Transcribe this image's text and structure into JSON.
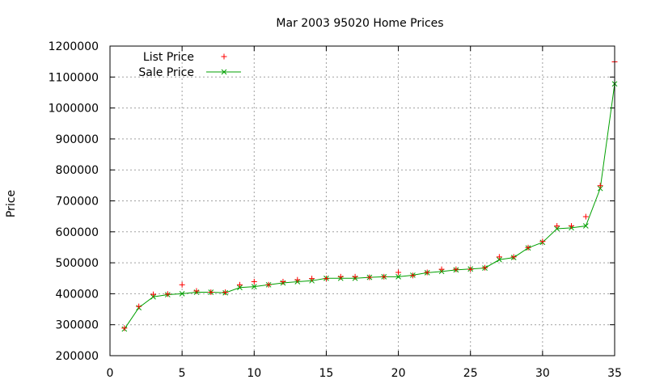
{
  "chart_data": {
    "type": "line",
    "title": "Mar 2003 95020 Home Prices",
    "xlabel": "",
    "ylabel": "Price",
    "xlim": [
      0,
      35
    ],
    "ylim": [
      200000,
      1200000
    ],
    "xticks": [
      0,
      5,
      10,
      15,
      20,
      25,
      30,
      35
    ],
    "yticks": [
      200000,
      300000,
      400000,
      500000,
      600000,
      700000,
      800000,
      900000,
      1000000,
      1100000,
      1200000
    ],
    "grid": true,
    "legend_position": "top-left",
    "series": [
      {
        "name": "List Price",
        "style": "points",
        "marker": "+",
        "color": "#ff0000",
        "x": [
          1,
          2,
          3,
          4,
          5,
          6,
          7,
          8,
          9,
          10,
          11,
          12,
          13,
          14,
          15,
          16,
          17,
          18,
          19,
          20,
          21,
          22,
          23,
          24,
          25,
          26,
          27,
          28,
          29,
          30,
          31,
          32,
          33,
          34,
          35
        ],
        "values": [
          289000,
          359000,
          398000,
          399000,
          429000,
          409000,
          405000,
          405000,
          429000,
          439000,
          429000,
          439000,
          445000,
          449000,
          449000,
          455000,
          455000,
          453000,
          455000,
          469000,
          459000,
          469000,
          479000,
          479000,
          479000,
          484000,
          519000,
          519000,
          549000,
          569000,
          619000,
          619000,
          649000,
          749000,
          1149000
        ]
      },
      {
        "name": "Sale Price",
        "style": "linespoints",
        "marker": "x",
        "color": "#00a000",
        "x": [
          1,
          2,
          3,
          4,
          5,
          6,
          7,
          8,
          9,
          10,
          11,
          12,
          13,
          14,
          15,
          16,
          17,
          18,
          19,
          20,
          21,
          22,
          23,
          24,
          25,
          26,
          27,
          28,
          29,
          30,
          31,
          32,
          33,
          34,
          35
        ],
        "values": [
          286000,
          355000,
          390000,
          397000,
          400000,
          405000,
          405000,
          403000,
          420000,
          423000,
          429000,
          435000,
          439000,
          442000,
          450000,
          450000,
          450000,
          453000,
          455000,
          455000,
          460000,
          468000,
          472000,
          477000,
          480000,
          483000,
          510000,
          517000,
          548000,
          566000,
          610000,
          613000,
          619000,
          740000,
          1078000
        ]
      }
    ]
  }
}
